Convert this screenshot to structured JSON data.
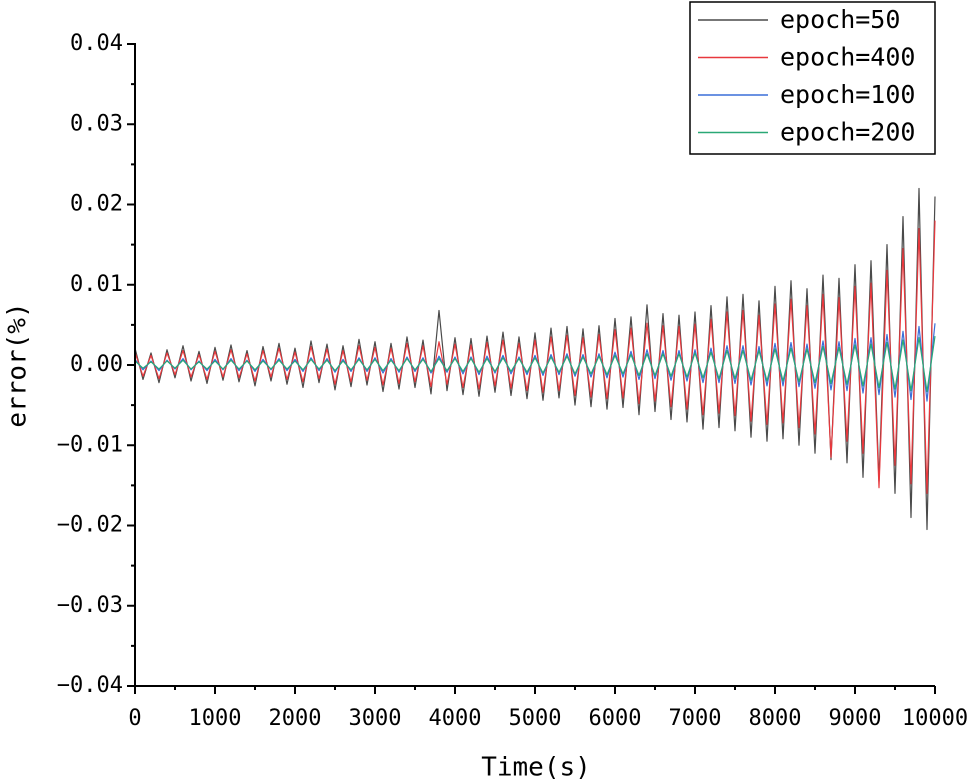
{
  "chart_data": {
    "type": "line",
    "xlabel": "Time(s)",
    "ylabel": "error(%)",
    "xlim": [
      0,
      10000
    ],
    "xticks": [
      0,
      1000,
      2000,
      3000,
      4000,
      5000,
      6000,
      7000,
      8000,
      9000,
      10000
    ],
    "ylim": [
      -0.04,
      0.04
    ],
    "yticks": [
      {
        "value": -0.04,
        "label": "−0.04"
      },
      {
        "value": -0.03,
        "label": "−0.03"
      },
      {
        "value": -0.02,
        "label": "−0.02"
      },
      {
        "value": -0.01,
        "label": "−0.01"
      },
      {
        "value": 0,
        "label": "0.00"
      },
      {
        "value": 0.01,
        "label": "0.01"
      },
      {
        "value": 0.02,
        "label": "0.02"
      },
      {
        "value": 0.03,
        "label": "0.03"
      },
      {
        "value": 0.04,
        "label": "0.04"
      }
    ],
    "legend": "upper right",
    "x": [
      0,
      100,
      200,
      300,
      400,
      500,
      600,
      700,
      800,
      900,
      1000,
      1100,
      1200,
      1300,
      1400,
      1500,
      1600,
      1700,
      1800,
      1900,
      2000,
      2100,
      2200,
      2300,
      2400,
      2500,
      2600,
      2700,
      2800,
      2900,
      3000,
      3100,
      3200,
      3300,
      3400,
      3500,
      3600,
      3700,
      3800,
      3900,
      4000,
      4100,
      4200,
      4300,
      4400,
      4500,
      4600,
      4700,
      4800,
      4900,
      5000,
      5100,
      5200,
      5300,
      5400,
      5500,
      5600,
      5700,
      5800,
      5900,
      6000,
      6100,
      6200,
      6300,
      6400,
      6500,
      6600,
      6700,
      6800,
      6900,
      7000,
      7100,
      7200,
      7300,
      7400,
      7500,
      7600,
      7700,
      7800,
      7900,
      8000,
      8100,
      8200,
      8300,
      8400,
      8500,
      8600,
      8700,
      8800,
      8900,
      9000,
      9100,
      9200,
      9300,
      9400,
      9500,
      9600,
      9700,
      9800,
      9900,
      10000
    ],
    "series": [
      {
        "name": "epoch=50",
        "color": "#4a4a4a",
        "values": [
          0.0021,
          -0.0018,
          0.0015,
          -0.0022,
          0.0019,
          -0.0016,
          0.0024,
          -0.002,
          0.0017,
          -0.0023,
          0.0022,
          -0.0019,
          0.0025,
          -0.0021,
          0.0018,
          -0.0026,
          0.0023,
          -0.002,
          0.0027,
          -0.0024,
          0.0021,
          -0.0028,
          0.003,
          -0.0022,
          0.0026,
          -0.0031,
          0.0024,
          -0.0027,
          0.0032,
          -0.0025,
          0.0029,
          -0.0033,
          0.0027,
          -0.003,
          0.0035,
          -0.0028,
          0.0031,
          -0.0036,
          0.0068,
          -0.0032,
          0.0034,
          -0.0037,
          0.0033,
          -0.0039,
          0.0036,
          -0.0034,
          0.0041,
          -0.0038,
          0.0035,
          -0.0042,
          0.004,
          -0.0044,
          0.0046,
          -0.0041,
          0.0048,
          -0.005,
          0.0045,
          -0.0052,
          0.0049,
          -0.0055,
          0.0058,
          -0.0053,
          0.006,
          -0.0062,
          0.0075,
          -0.0058,
          0.0064,
          -0.0068,
          0.0062,
          -0.0071,
          0.0066,
          -0.008,
          0.0074,
          -0.0078,
          0.0085,
          -0.0082,
          0.0088,
          -0.009,
          0.008,
          -0.0095,
          0.0098,
          -0.0092,
          0.0105,
          -0.01,
          0.0095,
          -0.011,
          0.0112,
          -0.0118,
          0.0108,
          -0.0122,
          0.0125,
          -0.014,
          0.013,
          -0.0145,
          0.015,
          -0.016,
          0.0185,
          -0.019,
          0.022,
          -0.0205,
          0.021
        ]
      },
      {
        "name": "epoch=400",
        "color": "#e8383d",
        "values": [
          0.0016,
          -0.0014,
          0.0012,
          -0.0017,
          0.0015,
          -0.0012,
          0.0018,
          -0.0015,
          0.0013,
          -0.0018,
          0.0017,
          -0.0015,
          0.0019,
          -0.0016,
          0.0014,
          -0.002,
          0.0018,
          -0.0015,
          0.0021,
          -0.0018,
          0.0016,
          -0.0021,
          0.0023,
          -0.0017,
          0.002,
          -0.0024,
          0.0018,
          -0.0021,
          0.0024,
          -0.0019,
          0.0022,
          -0.0025,
          0.0021,
          -0.0023,
          0.0027,
          -0.0021,
          0.0024,
          -0.0027,
          0.0029,
          -0.0024,
          0.0026,
          -0.0028,
          0.0025,
          -0.003,
          0.0028,
          -0.0026,
          0.0031,
          -0.0029,
          0.0027,
          -0.0032,
          0.0031,
          -0.0034,
          0.0035,
          -0.0032,
          0.0037,
          -0.0038,
          0.0034,
          -0.004,
          0.0038,
          -0.0042,
          0.0044,
          -0.0041,
          0.0046,
          -0.0048,
          0.0052,
          -0.0045,
          0.0049,
          -0.0052,
          0.0048,
          -0.0055,
          0.0051,
          -0.0062,
          0.0057,
          -0.006,
          0.0066,
          -0.0063,
          0.0068,
          -0.007,
          0.0062,
          -0.0074,
          0.0076,
          -0.0072,
          0.0082,
          -0.0078,
          0.0074,
          -0.0086,
          0.0088,
          -0.0115,
          0.0084,
          -0.0095,
          0.0098,
          -0.011,
          0.0102,
          -0.0153,
          0.0118,
          -0.0125,
          0.0145,
          -0.0148,
          0.017,
          -0.016,
          0.018
        ]
      },
      {
        "name": "epoch=100",
        "color": "#3a6fd8",
        "values": [
          0.0007,
          -0.0006,
          0.0005,
          -0.0007,
          0.0006,
          -0.0005,
          0.0008,
          -0.0006,
          0.0005,
          -0.0007,
          0.0007,
          -0.0006,
          0.0008,
          -0.0007,
          0.0006,
          -0.0008,
          0.0007,
          -0.0006,
          0.0008,
          -0.0007,
          0.0007,
          -0.0008,
          0.0009,
          -0.0007,
          0.0008,
          -0.0009,
          0.0007,
          -0.0008,
          0.0009,
          -0.0008,
          0.0009,
          -0.001,
          0.0008,
          -0.0009,
          0.001,
          -0.0008,
          0.0009,
          -0.001,
          0.0011,
          -0.0009,
          0.001,
          -0.0011,
          0.001,
          -0.0012,
          0.0011,
          -0.001,
          0.0012,
          -0.0011,
          0.001,
          -0.0012,
          0.0012,
          -0.0013,
          0.0013,
          -0.0012,
          0.0014,
          -0.0014,
          0.0013,
          -0.0015,
          0.0014,
          -0.0016,
          0.0016,
          -0.0015,
          0.0017,
          -0.0018,
          0.0019,
          -0.0017,
          0.0018,
          -0.0019,
          0.0018,
          -0.002,
          0.0019,
          -0.0022,
          0.0021,
          -0.0022,
          0.0024,
          -0.0023,
          0.0024,
          -0.0025,
          0.0023,
          -0.0026,
          0.0027,
          -0.0026,
          0.0028,
          -0.0027,
          0.0026,
          -0.0029,
          0.003,
          -0.0031,
          0.0029,
          -0.0032,
          0.0033,
          -0.0035,
          0.0034,
          -0.0037,
          0.0038,
          -0.004,
          0.0042,
          -0.0043,
          0.0048,
          -0.0045,
          0.0052
        ]
      },
      {
        "name": "epoch=200",
        "color": "#2aa876",
        "values": [
          0.0005,
          -0.0004,
          0.0004,
          -0.0005,
          0.0005,
          -0.0004,
          0.0006,
          -0.0005,
          0.0004,
          -0.0005,
          0.0005,
          -0.0005,
          0.0006,
          -0.0005,
          0.0005,
          -0.0006,
          0.0005,
          -0.0005,
          0.0006,
          -0.0005,
          0.0005,
          -0.0006,
          0.0007,
          -0.0005,
          0.0006,
          -0.0007,
          0.0005,
          -0.0006,
          0.0007,
          -0.0006,
          0.0007,
          -0.0007,
          0.0006,
          -0.0007,
          0.0008,
          -0.0006,
          0.0007,
          -0.0008,
          0.0008,
          -0.0007,
          0.0008,
          -0.0008,
          0.0008,
          -0.0009,
          0.0008,
          -0.0008,
          0.0009,
          -0.0008,
          0.0008,
          -0.0009,
          0.0009,
          -0.001,
          0.001,
          -0.0009,
          0.0011,
          -0.0011,
          0.001,
          -0.0011,
          0.0011,
          -0.0012,
          0.0012,
          -0.0011,
          0.0013,
          -0.0013,
          0.0014,
          -0.0013,
          0.0014,
          -0.0014,
          0.0014,
          -0.0015,
          0.0015,
          -0.0016,
          0.0016,
          -0.0017,
          0.0018,
          -0.0017,
          0.0018,
          -0.0019,
          0.0018,
          -0.002,
          0.002,
          -0.002,
          0.0021,
          -0.0021,
          0.002,
          -0.0022,
          0.0023,
          -0.0023,
          0.0022,
          -0.0024,
          0.0025,
          -0.0026,
          0.0026,
          -0.0028,
          0.0028,
          -0.003,
          0.0031,
          -0.0032,
          0.0034,
          -0.0033,
          0.0036
        ]
      }
    ]
  }
}
